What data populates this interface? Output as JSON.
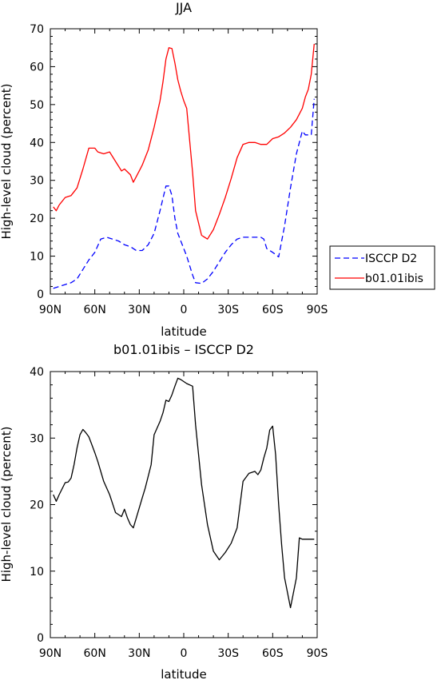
{
  "chart_data": [
    {
      "type": "line",
      "title": "JJA",
      "xlabel": "latitude",
      "ylabel": "High-level cloud (percent)",
      "ylim": [
        0,
        70
      ],
      "yticks": [
        "0",
        "10",
        "20",
        "30",
        "40",
        "50",
        "60",
        "70"
      ],
      "xlim": [
        90,
        -90
      ],
      "xticks": [
        "90N",
        "60N",
        "30N",
        "0",
        "30S",
        "60S",
        "90S"
      ],
      "legend_position": "right",
      "series": [
        {
          "name": "ISCCP D2",
          "style": "dashed",
          "color": "#0000ff",
          "x": [
            88,
            84,
            80,
            76,
            72,
            68,
            64,
            60,
            56,
            52,
            48,
            44,
            40,
            36,
            32,
            28,
            24,
            20,
            16,
            12,
            10,
            8,
            6,
            4,
            2,
            0,
            -2,
            -6,
            -8,
            -12,
            -16,
            -20,
            -24,
            -28,
            -32,
            -36,
            -40,
            -44,
            -48,
            -52,
            -54,
            -56,
            -60,
            -64,
            -68,
            -72,
            -76,
            -80,
            -82,
            -84,
            -86,
            -88
          ],
          "y": [
            1.5,
            2,
            2.5,
            3,
            4,
            6.5,
            9,
            11,
            14.5,
            15,
            14.5,
            14,
            13,
            12.5,
            11.5,
            11.5,
            13,
            16,
            22,
            28.5,
            28.5,
            26,
            20,
            16,
            14,
            12,
            10,
            5,
            3,
            2.8,
            4,
            6,
            8.5,
            11,
            13,
            14.5,
            15,
            15,
            15,
            15,
            14.5,
            12,
            11,
            9.8,
            18,
            28,
            37,
            43,
            42,
            42,
            42,
            51.5
          ]
        },
        {
          "name": "b01.01ibis",
          "style": "solid",
          "color": "#ff0000",
          "x": [
            88,
            86,
            84,
            80,
            76,
            72,
            68,
            64,
            60,
            58,
            54,
            50,
            46,
            42,
            40,
            36,
            34,
            30,
            28,
            24,
            20,
            16,
            14,
            12,
            10,
            8,
            6,
            4,
            2,
            0,
            -2,
            -6,
            -8,
            -12,
            -16,
            -20,
            -24,
            -28,
            -32,
            -36,
            -40,
            -44,
            -48,
            -52,
            -56,
            -60,
            -64,
            -68,
            -72,
            -76,
            -80,
            -82,
            -84,
            -86,
            -88
          ],
          "y": [
            23,
            22,
            23.5,
            25.5,
            26,
            28,
            33,
            38.5,
            38.5,
            37.5,
            37,
            37.5,
            35,
            32.5,
            33,
            31.5,
            29.5,
            32.5,
            34,
            38,
            44,
            51,
            56,
            62,
            65,
            64.8,
            61,
            56.5,
            53.5,
            51,
            49,
            32,
            22,
            15.5,
            14.5,
            17,
            21,
            25.5,
            30.5,
            36,
            39.5,
            40,
            40,
            39.5,
            39.5,
            41,
            41.5,
            42.5,
            44,
            46,
            49,
            52,
            54,
            58,
            66
          ]
        }
      ]
    },
    {
      "type": "line",
      "title": "b01.01ibis – ISCCP D2",
      "xlabel": "latitude",
      "ylabel": "High-level cloud (percent)",
      "ylim": [
        0,
        40
      ],
      "yticks": [
        "0",
        "10",
        "20",
        "30",
        "40"
      ],
      "xlim": [
        90,
        -90
      ],
      "xticks": [
        "90N",
        "60N",
        "30N",
        "0",
        "30S",
        "60S",
        "90S"
      ],
      "series": [
        {
          "style": "solid",
          "color": "#000000",
          "x": [
            88,
            86,
            84,
            80,
            78,
            76,
            74,
            72,
            70,
            68,
            66,
            64,
            62,
            60,
            58,
            54,
            50,
            46,
            42,
            40,
            38,
            36,
            34,
            30,
            28,
            26,
            22,
            20,
            16,
            14,
            12,
            10,
            8,
            6,
            4,
            2,
            0,
            -2,
            -6,
            -8,
            -12,
            -16,
            -20,
            -24,
            -28,
            -32,
            -36,
            -40,
            -44,
            -48,
            -50,
            -52,
            -54,
            -56,
            -58,
            -60,
            -62,
            -64,
            -66,
            -68,
            -72,
            -76,
            -78,
            -80,
            -82,
            -84,
            -86,
            -88
          ],
          "y": [
            21.5,
            20.5,
            21.5,
            23.3,
            23.4,
            24,
            26,
            28.5,
            30.5,
            31.3,
            30.8,
            30.2,
            29,
            27.8,
            26.5,
            23.5,
            21.5,
            18.8,
            18.2,
            19.3,
            18,
            17,
            16.5,
            19.5,
            21,
            22.5,
            26,
            30.5,
            32.5,
            33.8,
            35.7,
            35.5,
            36.5,
            37.8,
            39,
            38.8,
            38.5,
            38.2,
            37.8,
            32,
            23,
            17,
            13,
            11.7,
            12.8,
            14.2,
            16.5,
            23.5,
            24.7,
            25,
            24.5,
            25.2,
            27,
            28.5,
            31.2,
            31.8,
            27.5,
            20,
            14,
            9,
            4.5,
            9,
            15,
            14.8,
            14.8,
            14.8,
            14.8,
            14.8
          ]
        }
      ]
    }
  ]
}
